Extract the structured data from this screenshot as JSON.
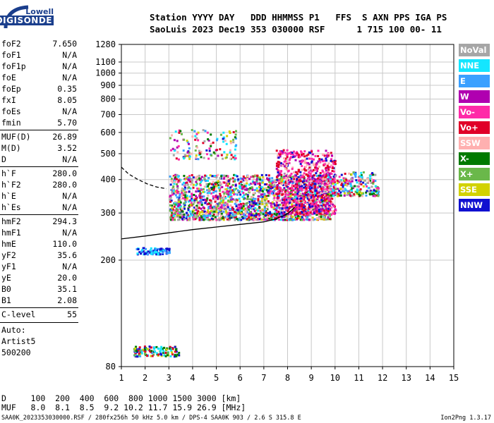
{
  "logo": {
    "top": "Lowell",
    "bottom": "DIGISONDE"
  },
  "header": {
    "line1": "Station YYYY DAY   DDD HHMMSS P1   FFS  S AXN PPS IGA PS",
    "line2": "SaoLuis 2023 Dec19 353 030000 RSF      1 715 100 00- 11"
  },
  "params_group1": [
    {
      "key": "foF2",
      "value": "7.650"
    },
    {
      "key": "foF1",
      "value": "N/A"
    },
    {
      "key": "foF1p",
      "value": "N/A"
    },
    {
      "key": "foE",
      "value": "N/A"
    },
    {
      "key": "foEp",
      "value": "0.35"
    },
    {
      "key": "fxI",
      "value": "8.05"
    },
    {
      "key": "foEs",
      "value": "N/A"
    },
    {
      "key": "fmin",
      "value": "5.70"
    }
  ],
  "params_group2": [
    {
      "key": "MUF(D)",
      "value": "26.89"
    },
    {
      "key": "M(D)",
      "value": "3.52"
    },
    {
      "key": "D",
      "value": "N/A"
    }
  ],
  "params_group3": [
    {
      "key": "h`F",
      "value": "280.0"
    },
    {
      "key": "h`F2",
      "value": "280.0"
    },
    {
      "key": "h`E",
      "value": "N/A"
    },
    {
      "key": "h`Es",
      "value": "N/A"
    }
  ],
  "params_group4": [
    {
      "key": "hmF2",
      "value": "294.3"
    },
    {
      "key": "hmF1",
      "value": "N/A"
    },
    {
      "key": "hmE",
      "value": "110.0"
    },
    {
      "key": "yF2",
      "value": "35.6"
    },
    {
      "key": "yF1",
      "value": "N/A"
    },
    {
      "key": "yE",
      "value": "20.0"
    },
    {
      "key": "B0",
      "value": "35.1"
    },
    {
      "key": "B1",
      "value": "2.08"
    }
  ],
  "clevel": {
    "key": "C-level",
    "value": "55"
  },
  "auto": [
    "Auto:",
    "Artist5",
    "500200"
  ],
  "legend": [
    {
      "label": "NoVal",
      "bg": "#a6a6a6",
      "fg": "#ffffff"
    },
    {
      "label": "NNE",
      "bg": "#14e6ff",
      "fg": "#ffffff"
    },
    {
      "label": "E",
      "bg": "#3aa0ff",
      "fg": "#ffffff"
    },
    {
      "label": "W",
      "bg": "#b000b0",
      "fg": "#ffffff"
    },
    {
      "label": "Vo-",
      "bg": "#ff2aa8",
      "fg": "#ffffff"
    },
    {
      "label": "Vo+",
      "bg": "#e00028",
      "fg": "#ffffff"
    },
    {
      "label": "SSW",
      "bg": "#ffb0b0",
      "fg": "#ffffff"
    },
    {
      "label": "X-",
      "bg": "#007a00",
      "fg": "#ffffff"
    },
    {
      "label": "X+",
      "bg": "#6ab84a",
      "fg": "#ffffff"
    },
    {
      "label": "SSE",
      "bg": "#d2d200",
      "fg": "#ffffff"
    },
    {
      "label": "NNW",
      "bg": "#1010d0",
      "fg": "#ffffff"
    }
  ],
  "footer": {
    "row_d": "D     100  200  400  600  800 1000 1500 3000 [km]",
    "row_muf": "MUF   8.0  8.1  8.5  9.2 10.2 11.7 15.9 26.9 [MHz]",
    "file": "SAA0K_2023353030000.RSF / 280fx256h 50 kHz 5.0 km / DPS-4 SAA0K 903 / 2.6 S 315.8 E",
    "version": "Ion2Png 1.3.17"
  },
  "chart_data": {
    "type": "scatter",
    "title": "",
    "xlabel": "",
    "ylabel": "",
    "xlim": [
      1,
      15
    ],
    "ylim": [
      80,
      1280
    ],
    "y_scale": "log",
    "x_ticks": [
      "1",
      "2",
      "3",
      "4",
      "5",
      "6",
      "7",
      "8",
      "9",
      "10",
      "11",
      "12",
      "13",
      "14",
      "15"
    ],
    "y_ticks": [
      {
        "v": 80,
        "t": "80"
      },
      {
        "v": 200,
        "t": "200"
      },
      {
        "v": 300,
        "t": "300"
      },
      {
        "v": 400,
        "t": "400"
      },
      {
        "v": 500,
        "t": "500"
      },
      {
        "v": 600,
        "t": "600"
      },
      {
        "v": 700,
        "t": "700"
      },
      {
        "v": 800,
        "t": "800"
      },
      {
        "v": 900,
        "t": "900"
      },
      {
        "v": 1000,
        "t": "1000"
      },
      {
        "v": 1100,
        "t": "1100"
      },
      {
        "v": 1280,
        "t": "1280"
      }
    ],
    "grid": true,
    "legend_position": "right",
    "traces": [
      {
        "name": "profile-solid",
        "style": "solid",
        "x": [
          1.0,
          2.0,
          3.0,
          4.0,
          5.0,
          6.0,
          7.0,
          7.5,
          8.0,
          8.3
        ],
        "y": [
          240,
          246,
          253,
          260,
          266,
          272,
          278,
          285,
          298,
          315
        ]
      },
      {
        "name": "profile-dashed",
        "style": "dashed",
        "x": [
          1.0,
          1.3,
          1.7,
          2.1,
          2.5,
          2.9
        ],
        "y": [
          445,
          420,
          400,
          385,
          375,
          370
        ]
      }
    ],
    "echo_regions": [
      {
        "x_range": [
          3.0,
          9.8
        ],
        "y_range": [
          285,
          420
        ],
        "density": 1900,
        "palette": "mixed"
      },
      {
        "x_range": [
          7.5,
          10.0
        ],
        "y_range": [
          300,
          520
        ],
        "density": 750,
        "palette": "red"
      },
      {
        "x_range": [
          9.5,
          11.8
        ],
        "y_range": [
          350,
          430
        ],
        "density": 260,
        "palette": "mixed"
      },
      {
        "x_range": [
          3.0,
          5.8
        ],
        "y_range": [
          480,
          620
        ],
        "density": 130,
        "palette": "mixed"
      },
      {
        "x_range": [
          1.6,
          3.0
        ],
        "y_range": [
          212,
          224
        ],
        "density": 90,
        "palette": "blue"
      },
      {
        "x_range": [
          1.5,
          3.4
        ],
        "y_range": [
          88,
          96
        ],
        "density": 140,
        "palette": "lowband"
      }
    ]
  }
}
